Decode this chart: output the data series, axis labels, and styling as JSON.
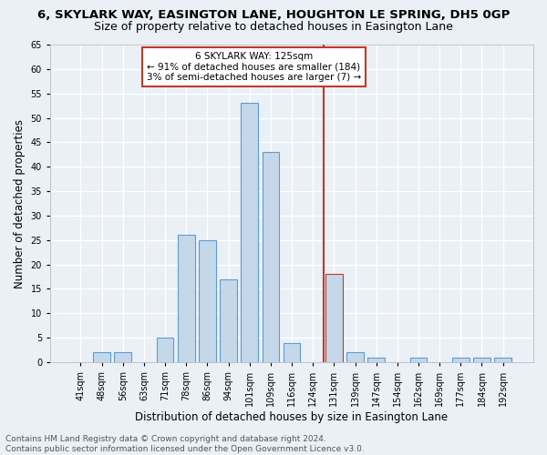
{
  "title": "6, SKYLARK WAY, EASINGTON LANE, HOUGHTON LE SPRING, DH5 0GP",
  "subtitle": "Size of property relative to detached houses in Easington Lane",
  "xlabel": "Distribution of detached houses by size in Easington Lane",
  "ylabel": "Number of detached properties",
  "footer_line1": "Contains HM Land Registry data © Crown copyright and database right 2024.",
  "footer_line2": "Contains public sector information licensed under the Open Government Licence v3.0.",
  "categories": [
    "41sqm",
    "48sqm",
    "56sqm",
    "63sqm",
    "71sqm",
    "78sqm",
    "86sqm",
    "94sqm",
    "101sqm",
    "109sqm",
    "116sqm",
    "124sqm",
    "131sqm",
    "139sqm",
    "147sqm",
    "154sqm",
    "162sqm",
    "169sqm",
    "177sqm",
    "184sqm",
    "192sqm"
  ],
  "values": [
    0,
    2,
    2,
    0,
    5,
    26,
    25,
    17,
    53,
    43,
    4,
    0,
    18,
    2,
    1,
    0,
    1,
    0,
    1,
    1,
    1
  ],
  "bar_color": "#c5d8ea",
  "bar_edgecolor": "#5b9bd5",
  "highlight_index": 12,
  "highlight_color": "#c5d8ea",
  "highlight_edgecolor": "#c0392b",
  "vline_color": "#c0392b",
  "annotation_text": "6 SKYLARK WAY: 125sqm\n← 91% of detached houses are smaller (184)\n3% of semi-detached houses are larger (7) →",
  "annotation_box_color": "white",
  "annotation_box_edgecolor": "#c0392b",
  "ylim": [
    0,
    65
  ],
  "yticks": [
    0,
    5,
    10,
    15,
    20,
    25,
    30,
    35,
    40,
    45,
    50,
    55,
    60,
    65
  ],
  "background_color": "#eaf0f6",
  "grid_color": "white",
  "title_fontsize": 9.5,
  "subtitle_fontsize": 9,
  "ylabel_fontsize": 8.5,
  "xlabel_fontsize": 8.5,
  "tick_fontsize": 7,
  "annotation_fontsize": 7.5,
  "footer_fontsize": 6.5
}
